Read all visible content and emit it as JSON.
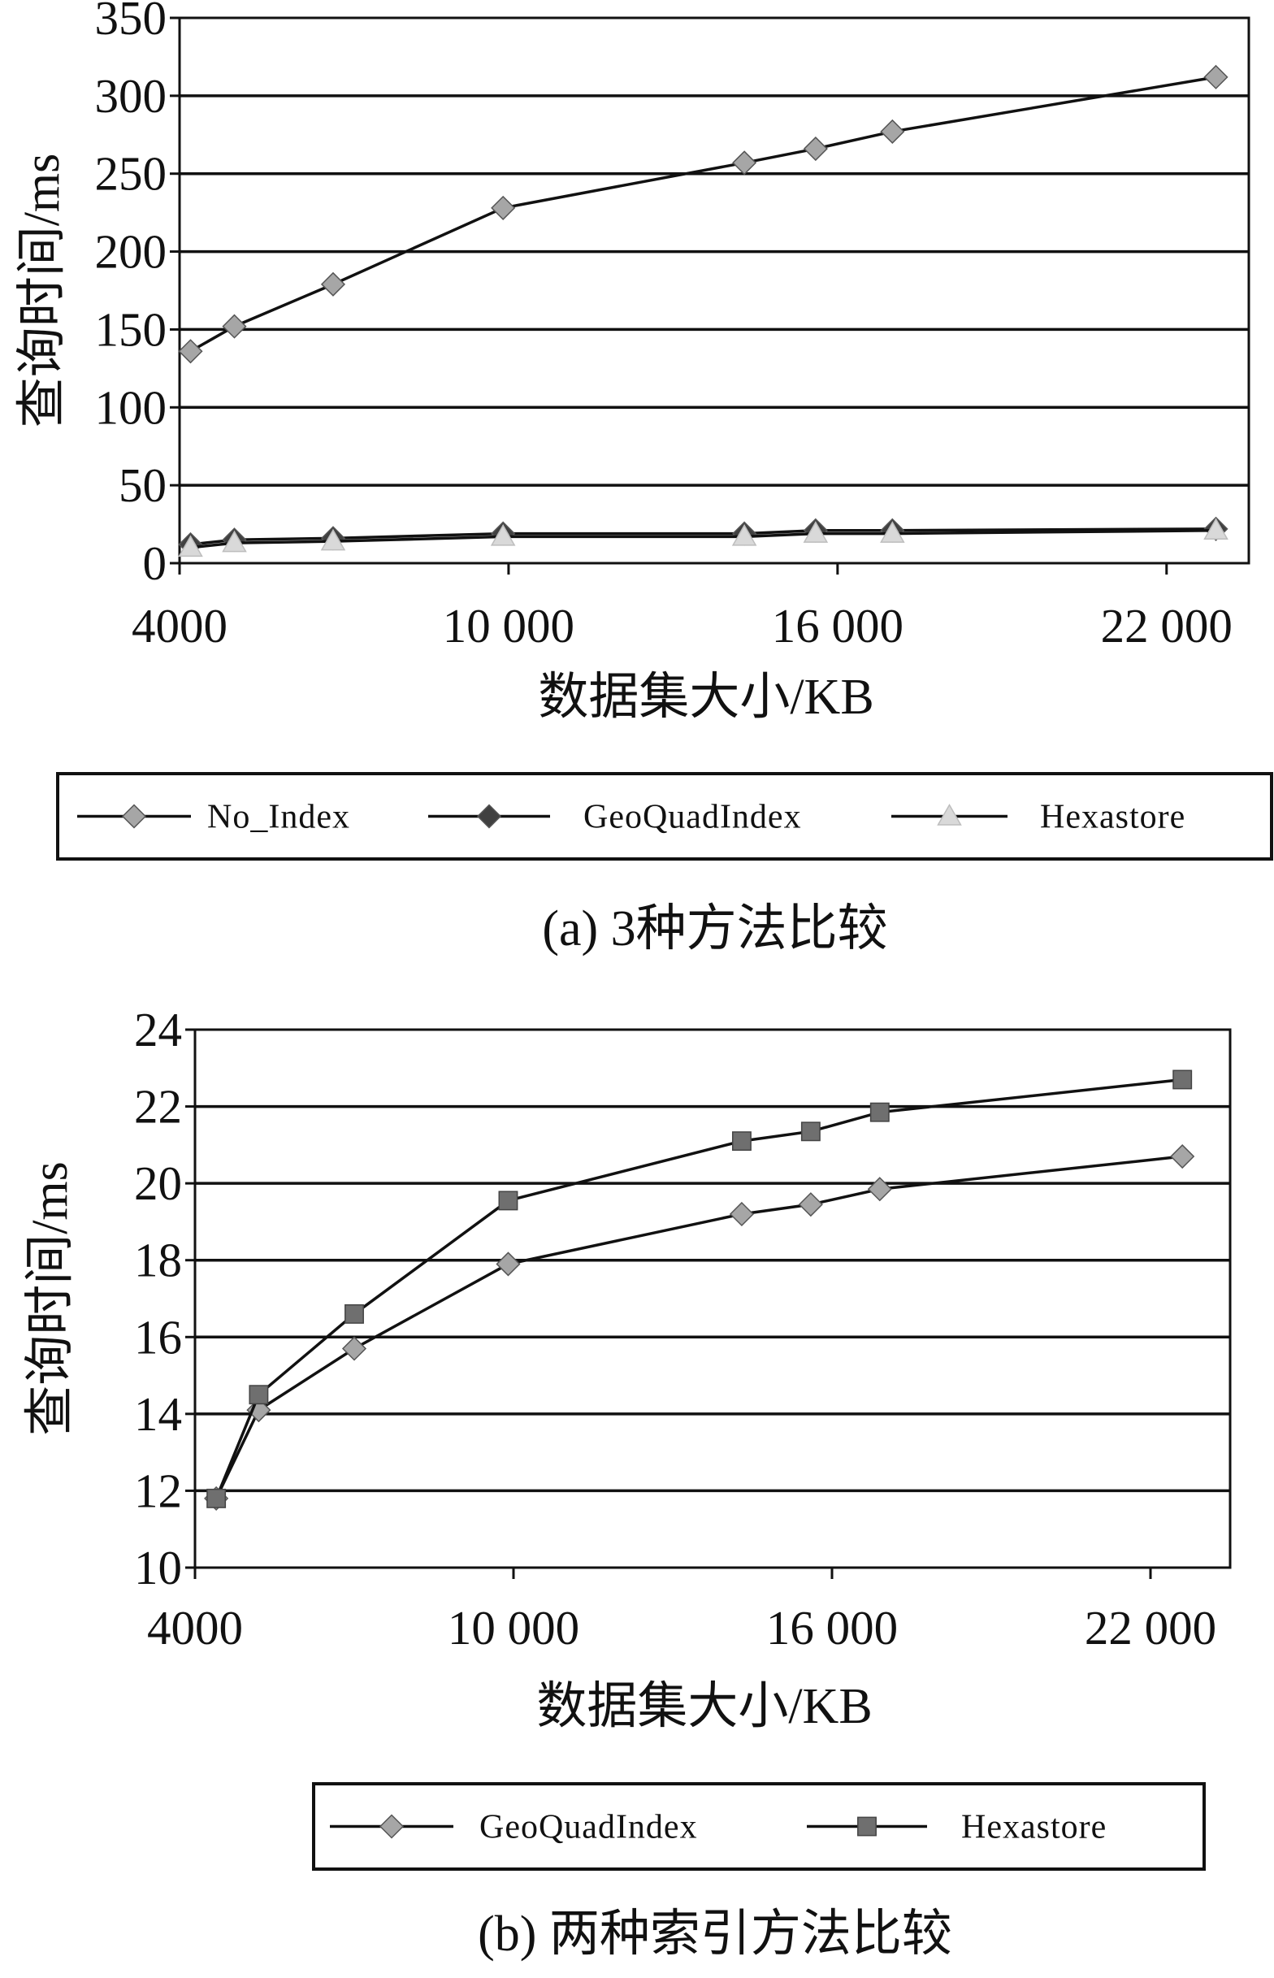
{
  "chart_data": [
    {
      "type": "line",
      "caption": "(a) 3种方法比较",
      "xlabel": "数据集大小/KB",
      "ylabel": "查询时间/ms",
      "xlim": [
        4000,
        23500
      ],
      "ylim": [
        0,
        350
      ],
      "xticks": [
        "4000",
        "10 000",
        "16 000",
        "22 000"
      ],
      "xtick_values": [
        4000,
        10000,
        16000,
        22000
      ],
      "yticks": [
        "0",
        "50",
        "100",
        "150",
        "200",
        "250",
        "300",
        "350"
      ],
      "ytick_values": [
        0,
        50,
        100,
        150,
        200,
        250,
        300,
        350
      ],
      "grid": "horizontal",
      "legend": "bottom",
      "series": [
        {
          "name": "No_Index",
          "marker": "diamond",
          "color": "#a6a6a6",
          "x": [
            4200,
            5000,
            6800,
            9900,
            14300,
            15600,
            17000,
            22900
          ],
          "y": [
            136,
            152,
            179,
            228,
            257,
            266,
            277,
            312
          ]
        },
        {
          "name": "GeoQuadIndex",
          "marker": "diamond",
          "color": "#404040",
          "x": [
            4200,
            5000,
            6800,
            9900,
            14300,
            15600,
            17000,
            22900
          ],
          "y": [
            12,
            15,
            16,
            19,
            19,
            21,
            21,
            22
          ]
        },
        {
          "name": "Hexastore",
          "marker": "triangle",
          "color": "#d9d9d9",
          "x": [
            4200,
            5000,
            6800,
            9900,
            14300,
            15600,
            17000,
            22900
          ],
          "y": [
            10,
            13,
            14,
            17,
            17,
            19,
            19,
            21
          ]
        }
      ]
    },
    {
      "type": "line",
      "caption": "(b) 两种索引方法比较",
      "xlabel": "数据集大小/KB",
      "ylabel": "查询时间/ms",
      "xlim": [
        4000,
        23500
      ],
      "ylim": [
        10,
        24
      ],
      "xticks": [
        "4000",
        "10 000",
        "16 000",
        "22 000"
      ],
      "xtick_values": [
        4000,
        10000,
        16000,
        22000
      ],
      "yticks": [
        "10",
        "12",
        "14",
        "16",
        "18",
        "20",
        "22",
        "24"
      ],
      "ytick_values": [
        10,
        12,
        14,
        16,
        18,
        20,
        22,
        24
      ],
      "grid": "horizontal",
      "legend": "bottom",
      "series": [
        {
          "name": "GeoQuadIndex",
          "marker": "diamond",
          "color": "#a6a6a6",
          "x": [
            4400,
            5200,
            7000,
            9900,
            14300,
            15600,
            16900,
            22600
          ],
          "y": [
            11.8,
            14.1,
            15.7,
            17.9,
            19.2,
            19.45,
            19.85,
            20.7
          ]
        },
        {
          "name": "Hexastore",
          "marker": "square",
          "color": "#6f6f6f",
          "x": [
            4400,
            5200,
            7000,
            9900,
            14300,
            15600,
            16900,
            22600
          ],
          "y": [
            11.8,
            14.5,
            16.6,
            19.55,
            21.1,
            21.35,
            21.85,
            22.7
          ]
        }
      ]
    }
  ]
}
